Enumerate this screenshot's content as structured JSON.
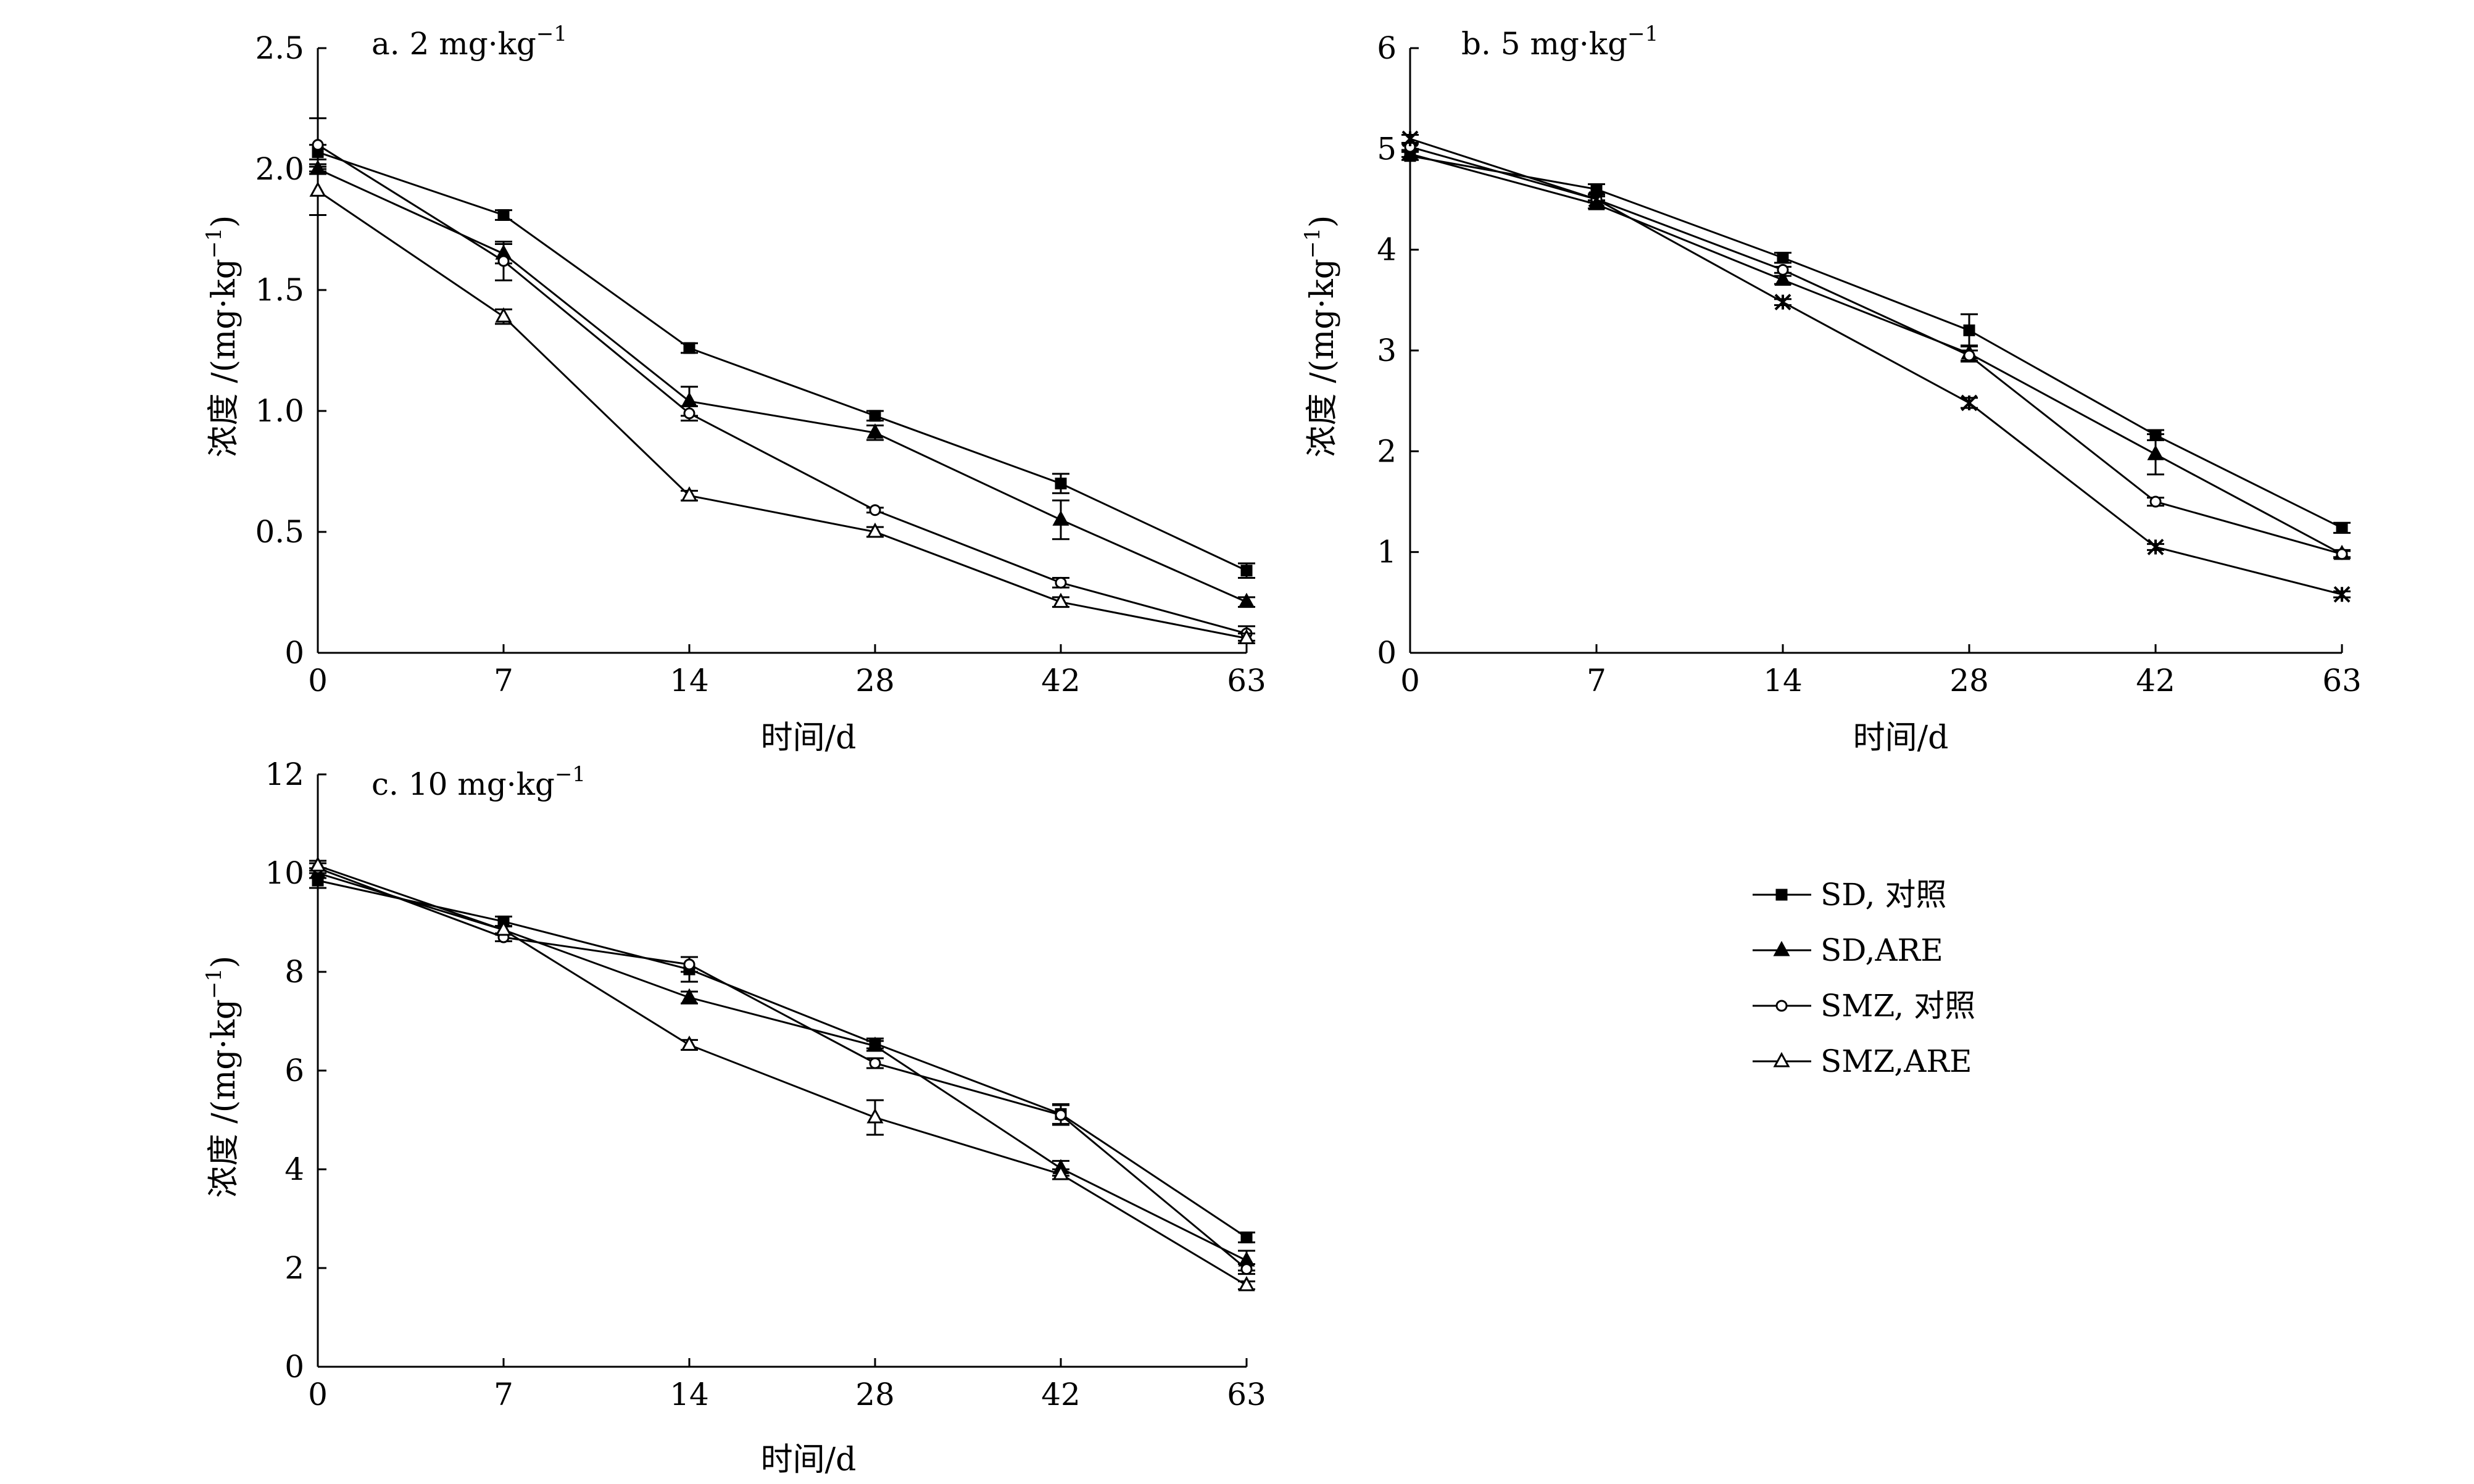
{
  "chart_data": [
    {
      "type": "line",
      "panel": "a",
      "title": "a. 2 mg·kg",
      "title_sup": "−1",
      "xlabel": "时间/d",
      "ylabel": "浓度 /(mg·kg",
      "ylabel_sup": "−1",
      "ylabel_close": ")",
      "categories": [
        "0",
        "7",
        "14",
        "28",
        "42",
        "63"
      ],
      "ylim": [
        0,
        2.5
      ],
      "yticks": [
        0,
        0.5,
        1.0,
        1.5,
        2.0,
        2.5
      ],
      "ytick_labels": [
        "0",
        "0.5",
        "1.0",
        "1.5",
        "2.0",
        "2.5"
      ],
      "series": [
        {
          "name": "SD, 对照",
          "marker": "square-filled",
          "values": [
            2.07,
            1.81,
            1.26,
            0.98,
            0.7,
            0.34
          ],
          "errors": [
            0.03,
            0.02,
            0.02,
            0.02,
            0.04,
            0.03
          ]
        },
        {
          "name": "SD,ARE",
          "marker": "triangle-filled",
          "values": [
            2.0,
            1.65,
            1.04,
            0.91,
            0.55,
            0.21
          ],
          "errors": [
            0.02,
            0.04,
            0.06,
            0.03,
            0.08,
            0.02
          ]
        },
        {
          "name": "SMZ, 对照",
          "marker": "circle-open",
          "values": [
            2.1,
            1.62,
            0.99,
            0.59,
            0.29,
            0.08
          ],
          "errors": [
            0.11,
            0.08,
            0.03,
            0.01,
            0.02,
            0.03
          ]
        },
        {
          "name": "SMZ,ARE",
          "marker": "triangle-open",
          "values": [
            1.91,
            1.39,
            0.65,
            0.5,
            0.21,
            0.06
          ],
          "errors": [
            0.1,
            0.03,
            0.02,
            0.02,
            0.02,
            0.02
          ]
        }
      ]
    },
    {
      "type": "line",
      "panel": "b",
      "title": "b. 5 mg·kg",
      "title_sup": "−1",
      "xlabel": "时间/d",
      "ylabel": "浓度 /(mg·kg",
      "ylabel_sup": "−1",
      "ylabel_close": ")",
      "categories": [
        "0",
        "7",
        "14",
        "28",
        "42",
        "63"
      ],
      "ylim": [
        0,
        6
      ],
      "yticks": [
        0,
        1,
        2,
        3,
        4,
        5,
        6
      ],
      "ytick_labels": [
        "0",
        "1",
        "2",
        "3",
        "4",
        "5",
        "6"
      ],
      "series": [
        {
          "name": "SD, 对照",
          "marker": "square-filled",
          "values": [
            4.93,
            4.6,
            3.92,
            3.2,
            2.16,
            1.24
          ],
          "errors": [
            0.04,
            0.05,
            0.05,
            0.16,
            0.05,
            0.05
          ]
        },
        {
          "name": "SD,ARE",
          "marker": "triangle-filled",
          "values": [
            4.95,
            4.45,
            3.7,
            2.97,
            1.97,
            0.98
          ],
          "errors": [
            0.03,
            0.04,
            0.04,
            0.08,
            0.2,
            0.04
          ]
        },
        {
          "name": "SMZ, 对照",
          "marker": "circle-open",
          "values": [
            5.02,
            4.5,
            3.8,
            2.95,
            1.5,
            0.98
          ],
          "errors": [
            0.03,
            0.03,
            0.03,
            0.05,
            0.04,
            0.03
          ]
        },
        {
          "name": "SMZ,ARE",
          "marker": "star",
          "values": [
            5.1,
            4.5,
            3.48,
            2.48,
            1.05,
            0.58
          ],
          "errors": [
            0.04,
            0.03,
            0.03,
            0.05,
            0.03,
            0.03
          ]
        }
      ]
    },
    {
      "type": "line",
      "panel": "c",
      "title": "c. 10 mg·kg",
      "title_sup": "−1",
      "xlabel": "时间/d",
      "ylabel": "浓度 /(mg·kg",
      "ylabel_sup": "−1",
      "ylabel_close": ")",
      "categories": [
        "0",
        "7",
        "14",
        "28",
        "42",
        "63"
      ],
      "ylim": [
        0,
        12
      ],
      "yticks": [
        0,
        2,
        4,
        6,
        8,
        10,
        12
      ],
      "ytick_labels": [
        "0",
        "2",
        "4",
        "6",
        "8",
        "10",
        "12"
      ],
      "series": [
        {
          "name": "SD, 对照",
          "marker": "square-filled",
          "values": [
            9.85,
            9.02,
            8.05,
            6.55,
            5.12,
            2.62
          ],
          "errors": [
            0.15,
            0.1,
            0.25,
            0.1,
            0.2,
            0.1
          ]
        },
        {
          "name": "SD,ARE",
          "marker": "triangle-filled",
          "values": [
            10.0,
            8.85,
            7.48,
            6.5,
            4.02,
            2.15
          ],
          "errors": [
            0.1,
            0.08,
            0.12,
            0.1,
            0.15,
            0.2
          ]
        },
        {
          "name": "SMZ, 对照",
          "marker": "circle-open",
          "values": [
            10.1,
            8.7,
            8.15,
            6.15,
            5.1,
            1.98
          ],
          "errors": [
            0.1,
            0.08,
            0.15,
            0.1,
            0.2,
            0.1
          ]
        },
        {
          "name": "SMZ,ARE",
          "marker": "triangle-open",
          "values": [
            10.15,
            8.85,
            6.52,
            5.05,
            3.9,
            1.65
          ],
          "errors": [
            0.1,
            0.08,
            0.1,
            0.35,
            0.1,
            0.08
          ]
        }
      ]
    }
  ],
  "legend": {
    "placement": "bottom-right",
    "items": [
      {
        "label": "SD, 对照",
        "marker": "square-filled"
      },
      {
        "label": "SD,ARE",
        "marker": "triangle-filled"
      },
      {
        "label": "SMZ, 对照",
        "marker": "circle-open"
      },
      {
        "label": "SMZ,ARE",
        "marker": "triangle-open"
      }
    ]
  }
}
